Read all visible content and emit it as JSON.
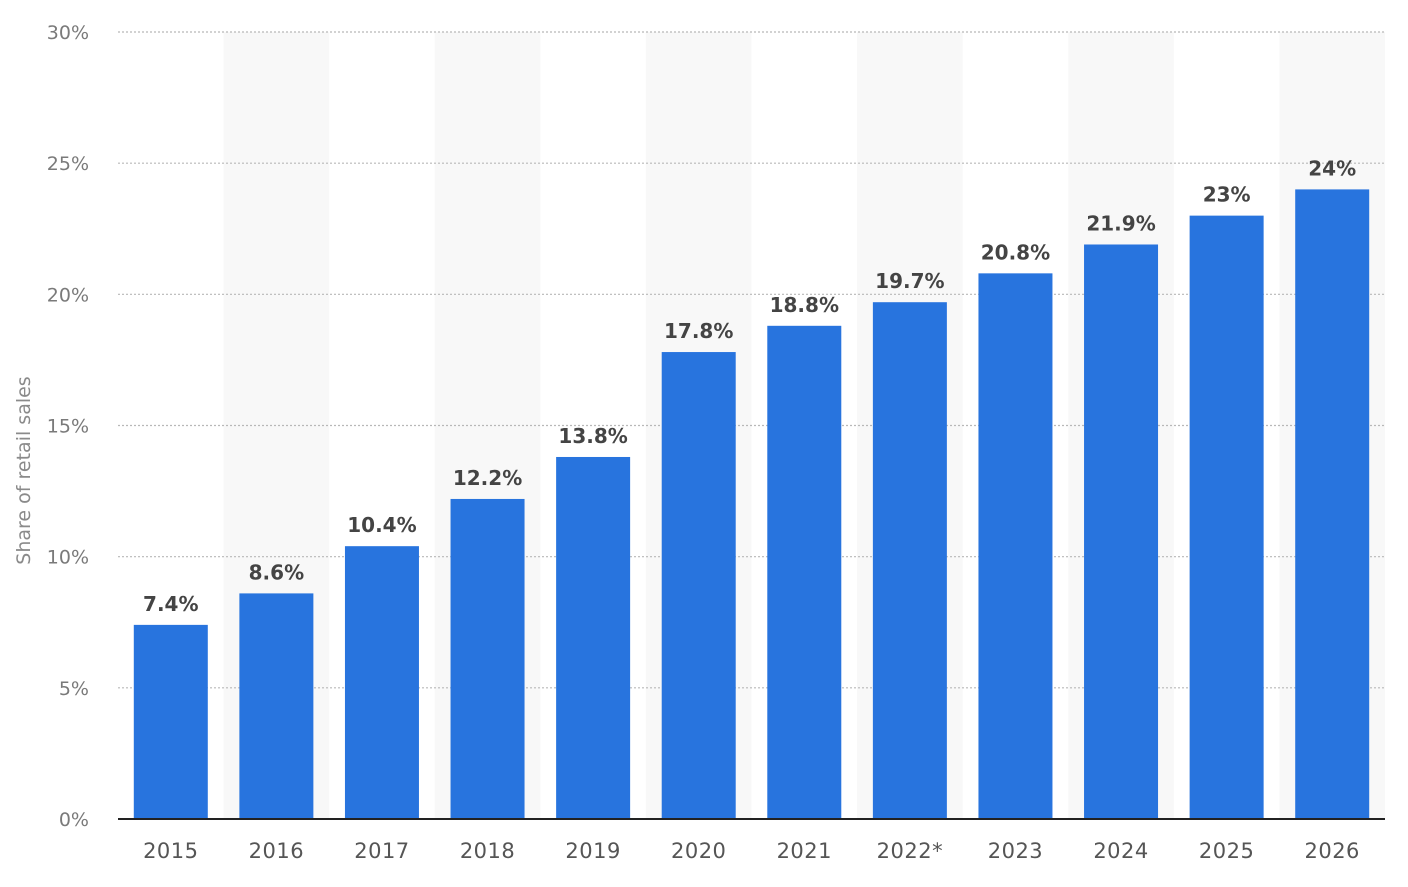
{
  "chart_data": {
    "type": "bar",
    "categories": [
      "2015",
      "2016",
      "2017",
      "2018",
      "2019",
      "2020",
      "2021",
      "2022*",
      "2023",
      "2024",
      "2025",
      "2026"
    ],
    "values": [
      7.4,
      8.6,
      10.4,
      12.2,
      13.8,
      17.8,
      18.8,
      19.7,
      20.8,
      21.9,
      23,
      24
    ],
    "data_labels": [
      "7.4%",
      "8.6%",
      "10.4%",
      "12.2%",
      "13.8%",
      "17.8%",
      "18.8%",
      "19.7%",
      "20.8%",
      "21.9%",
      "23%",
      "24%"
    ],
    "title": "",
    "xlabel": "",
    "ylabel": "Share of retail sales",
    "ylim": [
      0,
      30
    ],
    "yticks": [
      0,
      5,
      10,
      15,
      20,
      25,
      30
    ],
    "ytick_labels": [
      "0%",
      "5%",
      "10%",
      "15%",
      "20%",
      "25%",
      "30%"
    ],
    "grid": true,
    "legend": "none",
    "colors": {
      "bar": "#2874de",
      "band": "#f8f8f8",
      "grid": "#b8b8b8",
      "baseline": "#222222"
    }
  }
}
